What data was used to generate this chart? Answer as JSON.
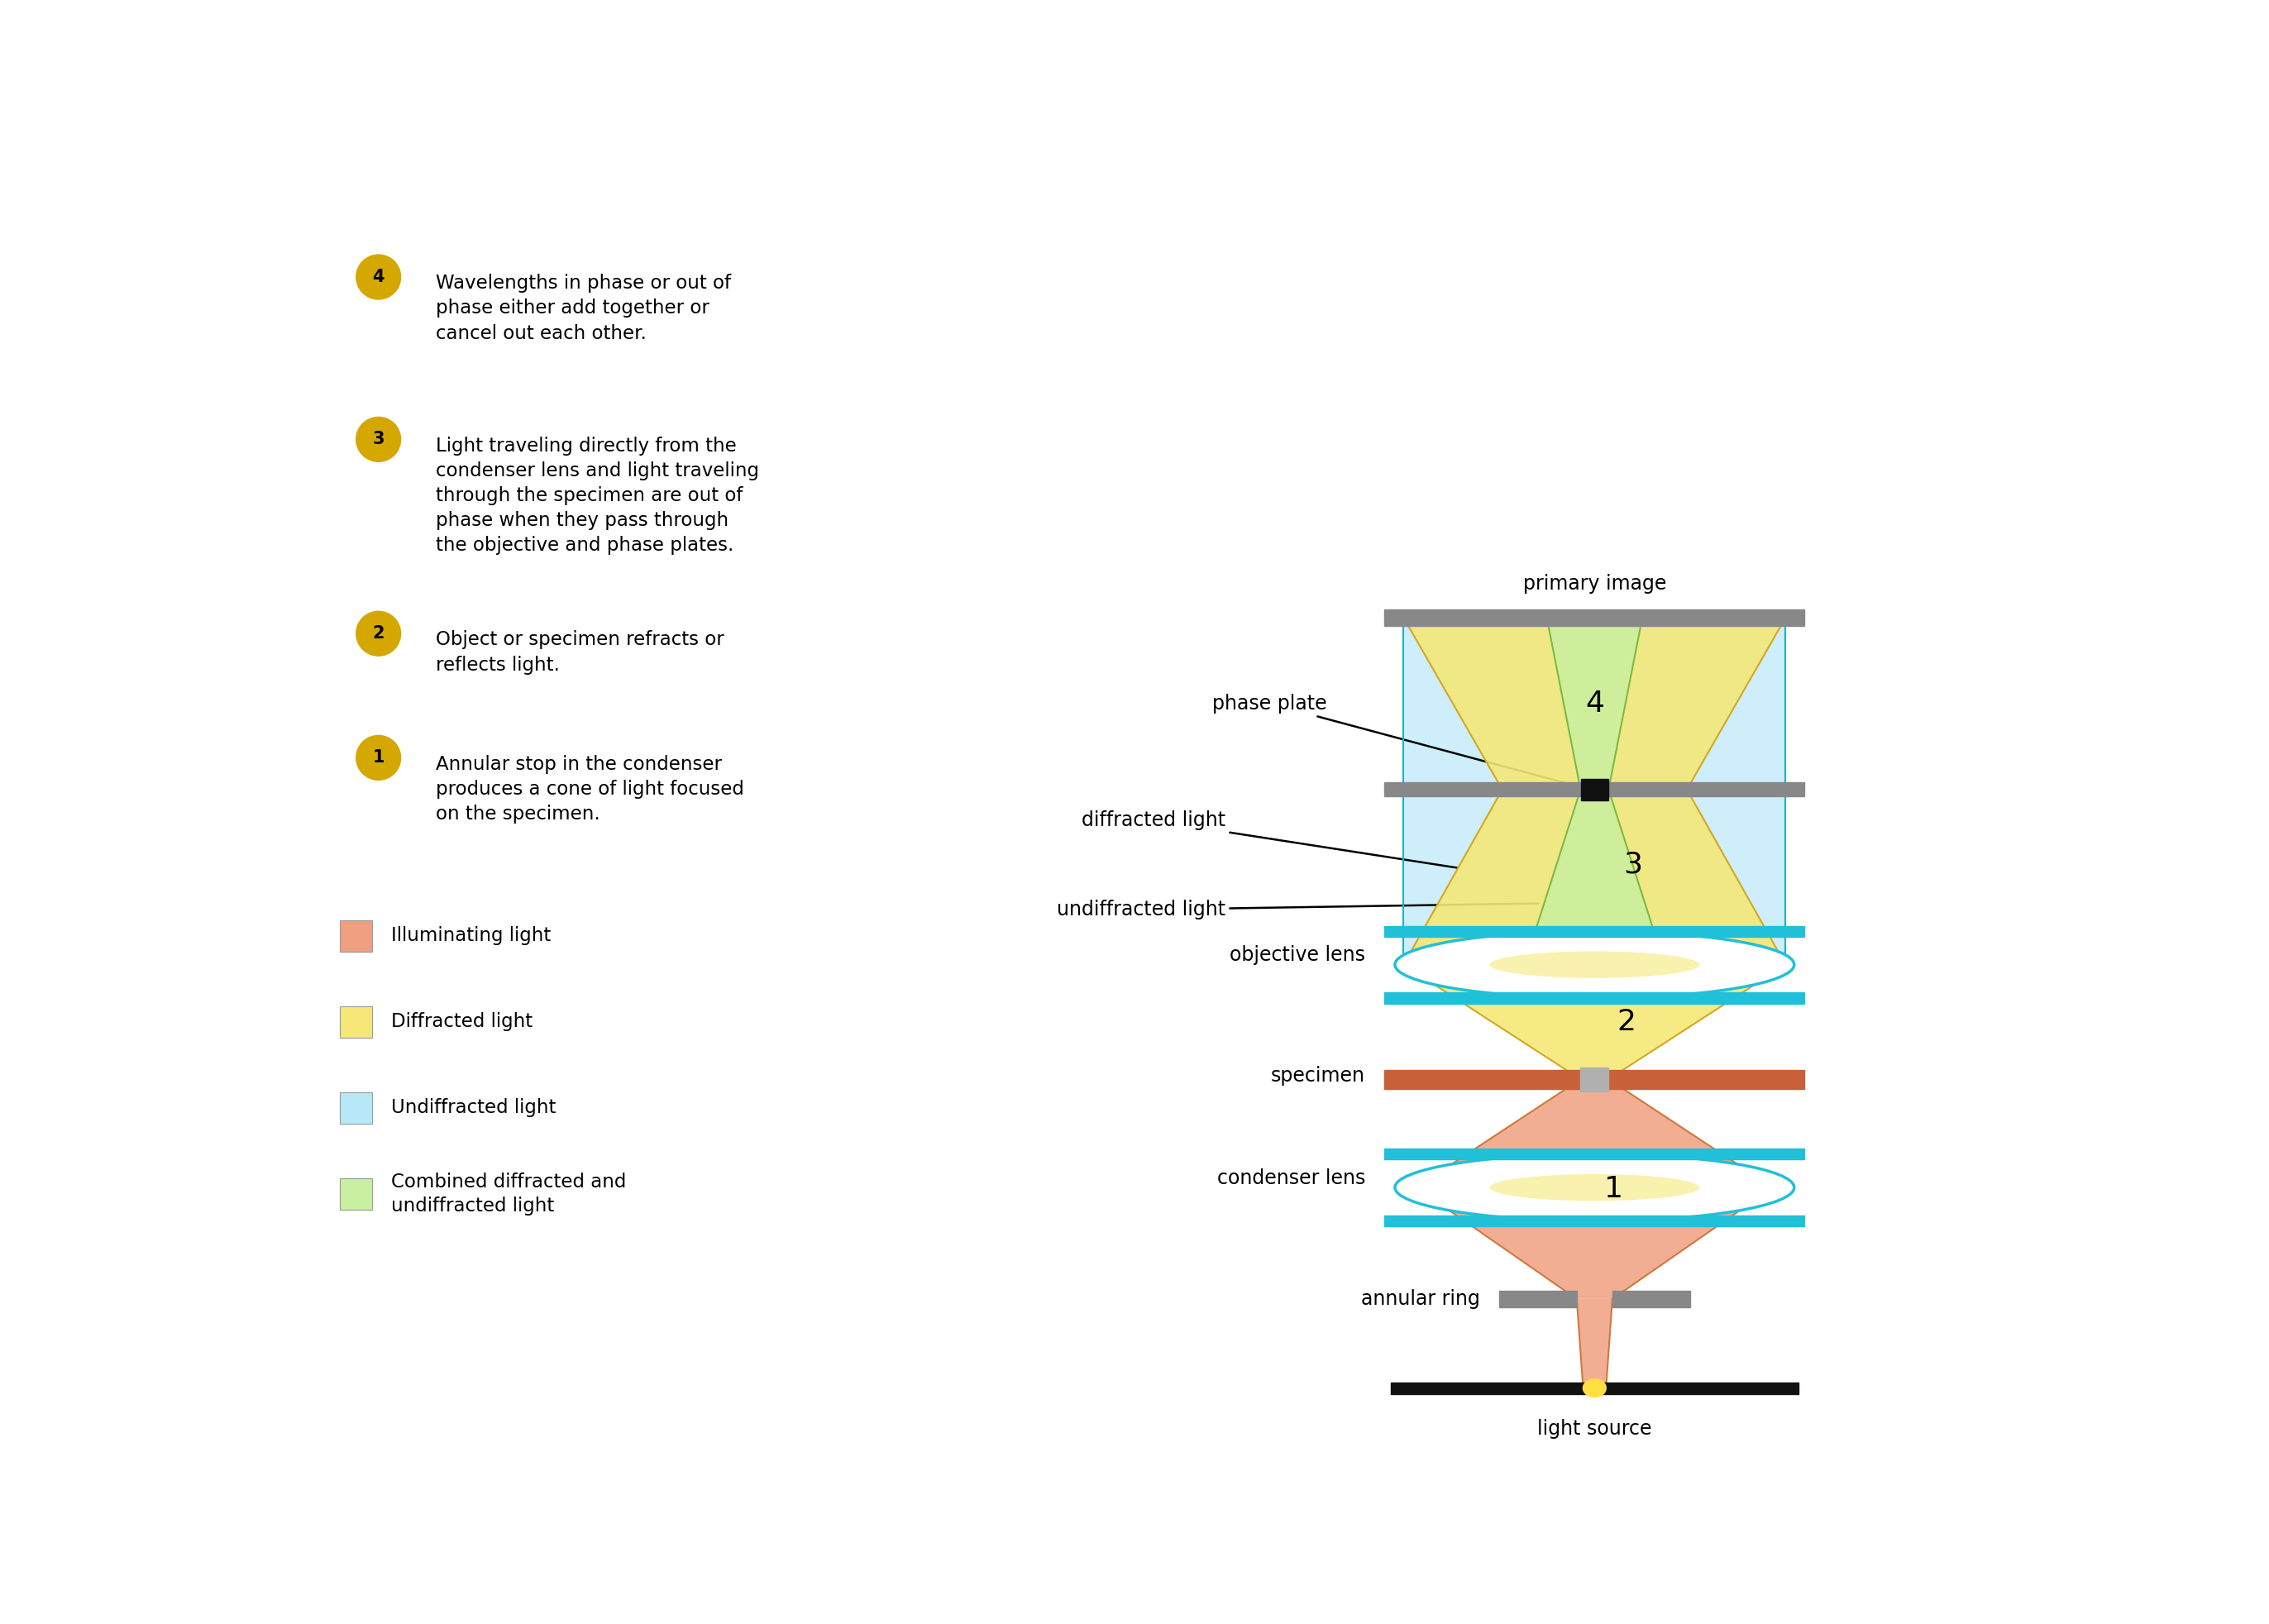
{
  "bg_color": "#ffffff",
  "colors": {
    "illuminating": "#F0A080",
    "diffracted": "#F5E878",
    "undiffracted": "#B8E8F8",
    "combined": "#C8F0A0",
    "gray_bar": "#888888",
    "specimen_bar": "#C8603A",
    "lens_fill": "#F0FCFF",
    "lens_border": "#20C0D8",
    "black": "#111111",
    "phase_plate_dark": "#111111",
    "light_source_yellow": "#FFE040",
    "ray_yellow": "#D4A820",
    "ray_cyan": "#20B0C8",
    "ray_orange": "#D07840"
  },
  "annotations": {
    "primary_image": "primary image",
    "phase_plate": "phase plate",
    "diffracted_light": "diffracted light",
    "undiffracted_light": "undiffracted light",
    "objective_lens": "objective lens",
    "specimen": "specimen",
    "condenser_lens": "condenser lens",
    "annular_ring": "annular ring",
    "light_source": "light source"
  },
  "legend": [
    {
      "label": "Illuminating light",
      "color": "#F0A080"
    },
    {
      "label": "Diffracted light",
      "color": "#F5E878"
    },
    {
      "label": "Undiffracted light",
      "color": "#B8E8F8"
    },
    {
      "label": "Combined diffracted and\nundiffracted light",
      "color": "#C8F0A0"
    }
  ],
  "step_labels": [
    {
      "num": "4",
      "text": "Wavelengths in phase or out of\nphase either add together or\ncancel out each other."
    },
    {
      "num": "3",
      "text": "Light traveling directly from the\ncondenser lens and light traveling\nthrough the specimen are out of\nphase when they pass through\nthe objective and phase plates."
    },
    {
      "num": "2",
      "text": "Object or specimen refracts or\nreflects light."
    },
    {
      "num": "1",
      "text": "Annular stop in the condenser\nproduces a cone of light focused\non the specimen."
    }
  ]
}
